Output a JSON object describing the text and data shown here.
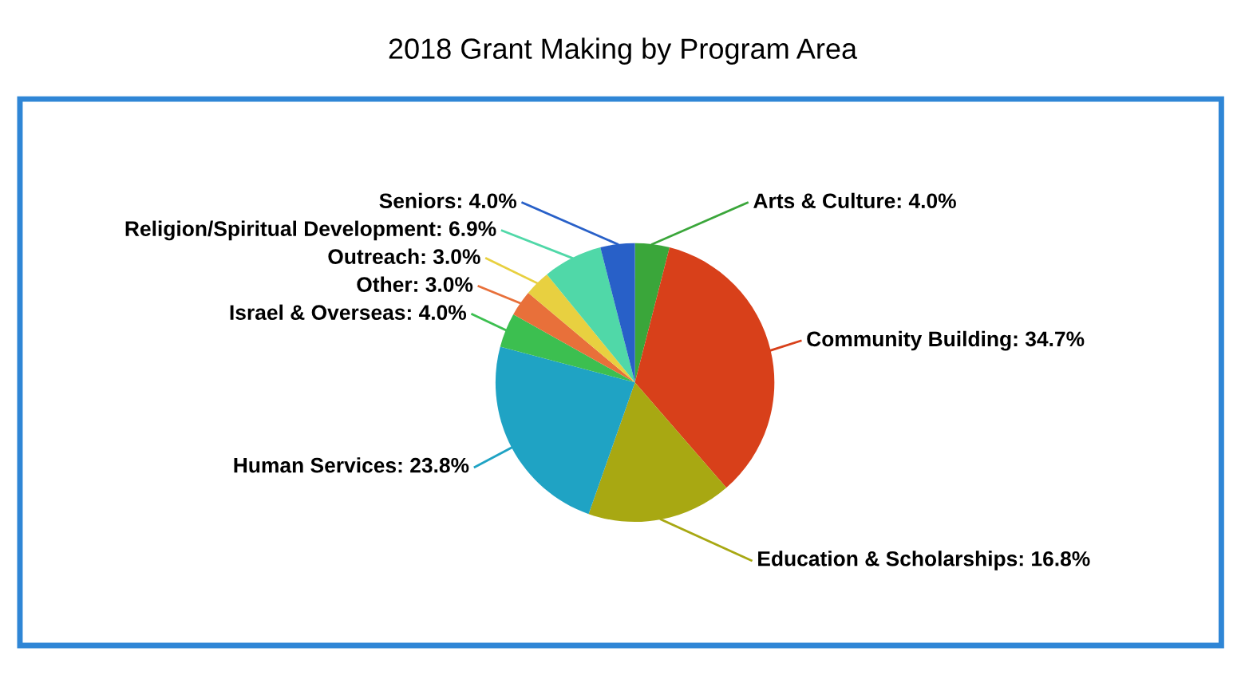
{
  "chart_data": {
    "type": "pie",
    "title": "2018 Grant Making by Program Area",
    "categories": [
      "Arts & Culture",
      "Community Building",
      "Education & Scholarships",
      "Human Services",
      "Israel & Overseas",
      "Other",
      "Outreach",
      "Religion/Spiritual Development",
      "Seniors"
    ],
    "values": [
      4.0,
      34.7,
      16.8,
      23.8,
      4.0,
      3.0,
      3.0,
      6.9,
      4.0
    ],
    "value_labels": [
      "4.0%",
      "34.7%",
      "16.8%",
      "23.8%",
      "4.0%",
      "3.0%",
      "3.0%",
      "6.9%",
      "4.0%"
    ],
    "colors": [
      "#3aa63a",
      "#d8401a",
      "#a8a812",
      "#1fa3c4",
      "#3cbf50",
      "#e8703a",
      "#e8d040",
      "#50d8a8",
      "#2860c8"
    ],
    "legend": false
  }
}
